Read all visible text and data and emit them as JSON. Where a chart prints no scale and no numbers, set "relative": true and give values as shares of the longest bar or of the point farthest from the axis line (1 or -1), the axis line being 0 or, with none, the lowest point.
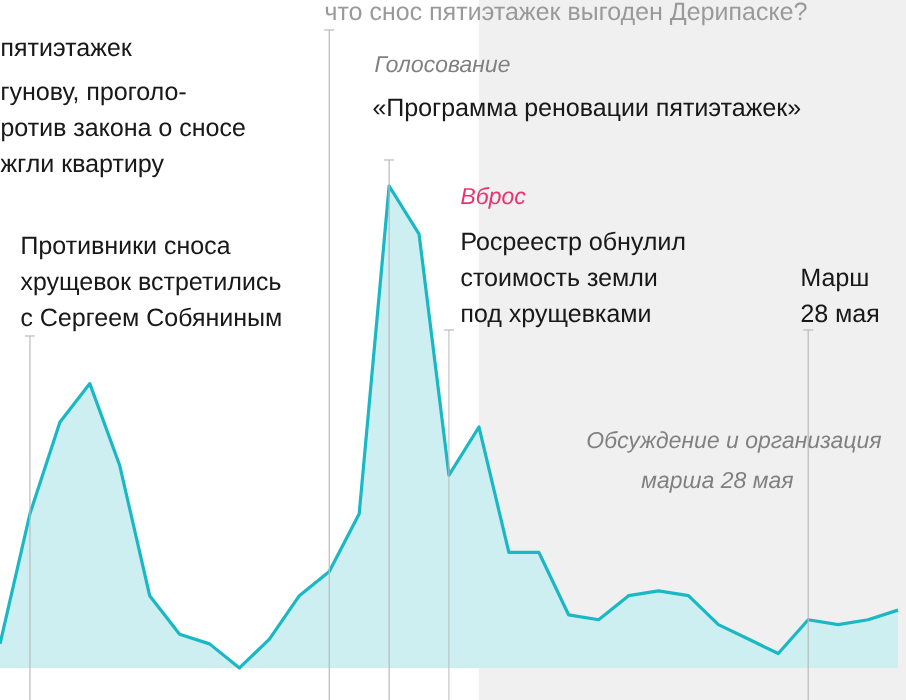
{
  "chart_data": {
    "type": "area",
    "relative": true,
    "grid": "x",
    "categories": [
      null,
      null,
      null,
      null,
      null,
      null,
      null,
      null,
      null,
      null,
      null,
      null,
      null,
      null,
      null,
      null,
      null,
      null,
      null,
      null,
      null,
      null,
      null,
      null,
      null,
      null,
      null,
      null,
      null,
      null,
      null
    ],
    "series": [
      {
        "color": "#1ab8c4",
        "values": [
          0.05,
          0.32,
          0.51,
          0.59,
          0.42,
          0.15,
          0.07,
          0.05,
          0,
          0.06,
          0.15,
          0.2,
          0.32,
          1,
          0.9,
          0.4,
          0.5,
          0.24,
          0.24,
          0.11,
          0.1,
          0.15,
          0.16,
          0.15,
          0.09,
          0.06,
          0.03,
          0.1,
          0.09,
          0.1,
          0.12
        ]
      }
    ],
    "annotations": [
      "что снос пятиэтажек выгоден Дерипаске?",
      "пятиэтажек",
      "гунову, проголо-",
      "ротив закона о сносе",
      "жгли квартиру",
      "Противники сноса",
      "хрущевок встретились",
      "с Сергеем Собяниным",
      "Голосование",
      "«Программа реновации пятиэтажек»",
      "Вброс",
      "Росреестр обнулил",
      "стоимость земли",
      "под хрущевками",
      "Марш",
      "28 мая",
      "Обсуждение и организация",
      "марша 28 мая"
    ]
  }
}
